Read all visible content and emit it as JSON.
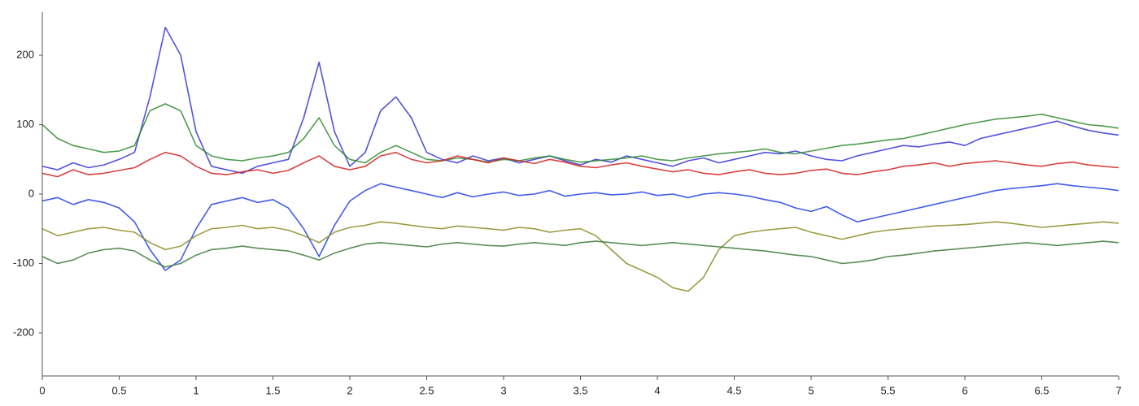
{
  "chart_data": {
    "type": "line",
    "x": [
      0,
      0.1,
      0.2,
      0.3,
      0.4,
      0.5,
      0.6,
      0.7,
      0.8,
      0.9,
      1,
      1.1,
      1.2,
      1.3,
      1.4,
      1.5,
      1.6,
      1.7,
      1.8,
      1.9,
      2,
      2.1,
      2.2,
      2.3,
      2.4,
      2.5,
      2.6,
      2.7,
      2.8,
      2.9,
      3,
      3.1,
      3.2,
      3.3,
      3.4,
      3.5,
      3.6,
      3.7,
      3.8,
      3.9,
      4,
      4.1,
      4.2,
      4.3,
      4.4,
      4.5,
      4.6,
      4.7,
      4.8,
      4.9,
      5,
      5.1,
      5.2,
      5.3,
      5.4,
      5.5,
      5.6,
      5.7,
      5.8,
      5.9,
      6,
      6.1,
      6.2,
      6.3,
      6.4,
      6.5,
      6.6,
      6.7,
      6.8,
      6.9,
      7
    ],
    "series": [
      {
        "color": "#3434d8",
        "values": [
          40,
          35,
          45,
          38,
          42,
          50,
          60,
          140,
          240,
          200,
          90,
          40,
          35,
          30,
          40,
          45,
          50,
          110,
          190,
          90,
          40,
          60,
          120,
          140,
          110,
          60,
          50,
          45,
          55,
          48,
          52,
          45,
          50,
          55,
          48,
          42,
          50,
          46,
          55,
          50,
          45,
          40,
          48,
          52,
          45,
          50,
          55,
          60,
          58,
          62,
          55,
          50,
          48,
          55,
          60,
          65,
          70,
          68,
          72,
          75,
          70,
          80,
          85,
          90,
          95,
          100,
          105,
          98,
          92,
          88,
          85
        ]
      },
      {
        "color": "#2e8b2e",
        "values": [
          100,
          80,
          70,
          65,
          60,
          62,
          70,
          120,
          130,
          120,
          70,
          55,
          50,
          48,
          52,
          55,
          60,
          80,
          110,
          70,
          50,
          45,
          60,
          70,
          60,
          50,
          48,
          52,
          50,
          46,
          50,
          48,
          52,
          55,
          50,
          46,
          48,
          50,
          52,
          55,
          50,
          48,
          52,
          55,
          58,
          60,
          62,
          65,
          60,
          58,
          62,
          66,
          70,
          72,
          75,
          78,
          80,
          85,
          90,
          95,
          100,
          104,
          108,
          110,
          112,
          115,
          110,
          105,
          100,
          98,
          95
        ]
      },
      {
        "color": "#d42020",
        "values": [
          30,
          25,
          35,
          28,
          30,
          34,
          38,
          50,
          60,
          55,
          40,
          30,
          28,
          32,
          35,
          30,
          34,
          45,
          55,
          40,
          35,
          40,
          55,
          60,
          50,
          45,
          48,
          55,
          50,
          45,
          52,
          48,
          44,
          50,
          46,
          40,
          38,
          42,
          45,
          40,
          36,
          32,
          35,
          30,
          28,
          32,
          35,
          30,
          28,
          30,
          34,
          36,
          30,
          28,
          32,
          35,
          40,
          42,
          45,
          40,
          44,
          46,
          48,
          45,
          42,
          40,
          44,
          46,
          42,
          40,
          38
        ]
      },
      {
        "color": "#2040e6",
        "values": [
          -10,
          -5,
          -15,
          -8,
          -12,
          -20,
          -40,
          -80,
          -110,
          -95,
          -50,
          -15,
          -10,
          -5,
          -12,
          -8,
          -20,
          -50,
          -90,
          -45,
          -10,
          5,
          15,
          10,
          5,
          0,
          -5,
          2,
          -4,
          0,
          3,
          -2,
          0,
          5,
          -3,
          0,
          2,
          -1,
          0,
          3,
          -2,
          0,
          -5,
          0,
          2,
          0,
          -3,
          -8,
          -12,
          -20,
          -25,
          -18,
          -30,
          -40,
          -35,
          -30,
          -25,
          -20,
          -15,
          -10,
          -5,
          0,
          5,
          8,
          10,
          12,
          15,
          12,
          10,
          8,
          5
        ]
      },
      {
        "color": "#8a8a22",
        "values": [
          -50,
          -60,
          -55,
          -50,
          -48,
          -52,
          -55,
          -70,
          -80,
          -75,
          -60,
          -50,
          -48,
          -45,
          -50,
          -48,
          -52,
          -60,
          -70,
          -55,
          -48,
          -45,
          -40,
          -42,
          -45,
          -48,
          -50,
          -46,
          -48,
          -50,
          -52,
          -48,
          -50,
          -55,
          -52,
          -50,
          -60,
          -80,
          -100,
          -110,
          -120,
          -135,
          -140,
          -120,
          -80,
          -60,
          -55,
          -52,
          -50,
          -48,
          -55,
          -60,
          -65,
          -60,
          -55,
          -52,
          -50,
          -48,
          -46,
          -45,
          -44,
          -42,
          -40,
          -42,
          -45,
          -48,
          -46,
          -44,
          -42,
          -40,
          -42
        ]
      },
      {
        "color": "#3c7a3c",
        "values": [
          -90,
          -100,
          -95,
          -85,
          -80,
          -78,
          -82,
          -95,
          -105,
          -100,
          -88,
          -80,
          -78,
          -75,
          -78,
          -80,
          -82,
          -88,
          -95,
          -85,
          -78,
          -72,
          -70,
          -72,
          -74,
          -76,
          -72,
          -70,
          -72,
          -74,
          -75,
          -72,
          -70,
          -72,
          -74,
          -70,
          -68,
          -70,
          -72,
          -74,
          -72,
          -70,
          -72,
          -74,
          -76,
          -78,
          -80,
          -82,
          -85,
          -88,
          -90,
          -95,
          -100,
          -98,
          -95,
          -90,
          -88,
          -85,
          -82,
          -80,
          -78,
          -76,
          -74,
          -72,
          -70,
          -72,
          -74,
          -72,
          -70,
          -68,
          -70
        ]
      }
    ],
    "xlim": [
      0,
      7
    ],
    "xticks": [
      0,
      0.5,
      1,
      1.5,
      2,
      2.5,
      3,
      3.5,
      4,
      4.5,
      5,
      5.5,
      6,
      6.5,
      7
    ],
    "ylim": [
      -262,
      262
    ],
    "yticks": [
      -200,
      -100,
      0,
      100,
      200
    ],
    "grid": false
  }
}
